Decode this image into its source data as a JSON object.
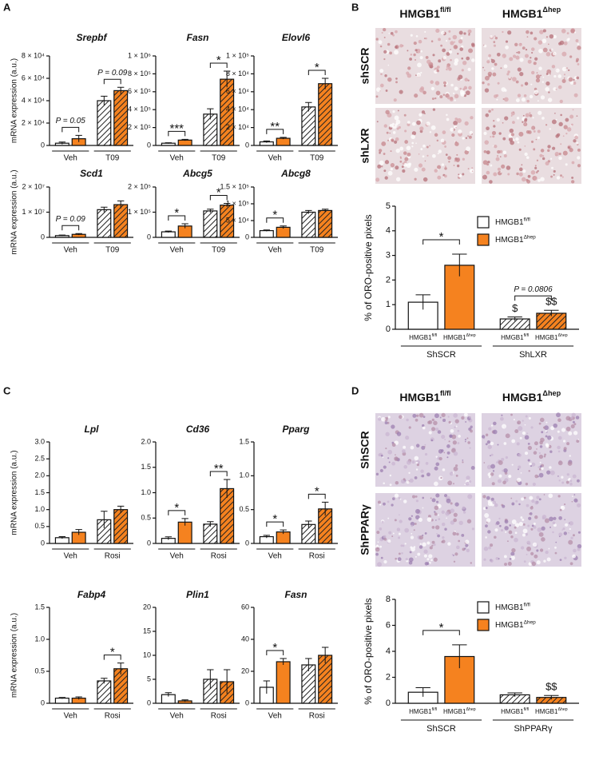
{
  "panel_labels": [
    "A",
    "B",
    "C",
    "D"
  ],
  "micrographs": [
    {
      "columns": [
        {
          "base": "HMGB1",
          "sup": "fl/fl"
        },
        {
          "base": "HMGB1",
          "sup": "Δhep"
        }
      ],
      "rows": [
        "shSCR",
        "shLXR"
      ]
    },
    {
      "columns": [
        {
          "base": "HMGB1",
          "sup": "fl/fl"
        },
        {
          "base": "HMGB1",
          "sup": "Δhep"
        }
      ],
      "rows": [
        "ShSCR",
        "ShPPARγ"
      ]
    }
  ],
  "chart_data": [
    {
      "type": "bar",
      "title": "Srepbf",
      "ylabel": "mRNA expression (a.u.)",
      "groups": [
        "Veh",
        "T09"
      ],
      "values": [
        2000,
        6000,
        40000,
        49000
      ],
      "errors": [
        1000,
        3000,
        4000,
        3000
      ],
      "colors": [
        "#ffffff",
        "#f5821f",
        "#ffffff",
        "#f5821f"
      ],
      "hatched": [
        false,
        false,
        true,
        true
      ],
      "ylim": [
        0,
        80000
      ],
      "yticks": [
        0,
        {
          "value": 20000,
          "label": "2 × 10⁴"
        },
        {
          "value": 40000,
          "label": "4 × 10⁴"
        },
        {
          "value": 60000,
          "label": "6 × 10⁴"
        },
        {
          "value": 80000,
          "label": "8 × 10⁴"
        }
      ],
      "annotations": [
        "P = 0.05",
        "P = 0.09"
      ]
    },
    {
      "type": "bar",
      "title": "Fasn",
      "groups": [
        "Veh",
        "T09"
      ],
      "values": [
        25000,
        60000,
        350000,
        740000
      ],
      "errors": [
        5000,
        8000,
        60000,
        90000
      ],
      "colors": [
        "#ffffff",
        "#f5821f",
        "#ffffff",
        "#f5821f"
      ],
      "hatched": [
        false,
        false,
        true,
        true
      ],
      "ylim": [
        0,
        1000000
      ],
      "yticks": [
        0,
        {
          "value": 200000,
          "label": "2 × 10⁵"
        },
        {
          "value": 400000,
          "label": "4 × 10⁵"
        },
        {
          "value": 600000,
          "label": "6 × 10⁵"
        },
        {
          "value": 800000,
          "label": "8 × 10⁵"
        },
        {
          "value": 1000000,
          "label": "1 × 10⁶"
        }
      ],
      "annotations": [
        "***",
        "*"
      ]
    },
    {
      "type": "bar",
      "title": "Elovl6",
      "groups": [
        "Veh",
        "T09"
      ],
      "values": [
        4000,
        8000,
        43000,
        69000
      ],
      "errors": [
        1000,
        1000,
        5000,
        6000
      ],
      "colors": [
        "#ffffff",
        "#f5821f",
        "#ffffff",
        "#f5821f"
      ],
      "hatched": [
        false,
        false,
        true,
        true
      ],
      "ylim": [
        0,
        100000
      ],
      "yticks": [
        0,
        {
          "value": 20000,
          "label": "2 × 10⁴"
        },
        {
          "value": 40000,
          "label": "4 × 10⁴"
        },
        {
          "value": 60000,
          "label": "6 × 10⁴"
        },
        {
          "value": 80000,
          "label": "8 × 10⁴"
        },
        {
          "value": 100000,
          "label": "1 × 10⁵"
        }
      ],
      "annotations": [
        "**",
        "*"
      ]
    },
    {
      "type": "bar",
      "title": "Scd1",
      "ylabel": "mRNA expression (a.u.)",
      "groups": [
        "Veh",
        "T09"
      ],
      "values": [
        700000,
        1200000,
        11000000,
        13000000
      ],
      "errors": [
        200000,
        300000,
        1000000,
        1500000
      ],
      "colors": [
        "#ffffff",
        "#f5821f",
        "#ffffff",
        "#f5821f"
      ],
      "hatched": [
        false,
        false,
        true,
        true
      ],
      "ylim": [
        0,
        20000000
      ],
      "yticks": [
        0,
        {
          "value": 10000000,
          "label": "1 × 10⁷"
        },
        {
          "value": 20000000,
          "label": "2 × 10⁷"
        }
      ],
      "annotations": [
        "P = 0.09",
        null
      ]
    },
    {
      "type": "bar",
      "title": "Abcg5",
      "groups": [
        "Veh",
        "T09"
      ],
      "values": [
        22000,
        45000,
        105000,
        128000
      ],
      "errors": [
        3000,
        9000,
        7000,
        7000
      ],
      "colors": [
        "#ffffff",
        "#f5821f",
        "#ffffff",
        "#f5821f"
      ],
      "hatched": [
        false,
        false,
        true,
        true
      ],
      "ylim": [
        0,
        200000
      ],
      "yticks": [
        0,
        {
          "value": 100000,
          "label": "1 × 10⁵"
        },
        {
          "value": 200000,
          "label": "2 × 10⁵"
        }
      ],
      "annotations": [
        "*",
        "*"
      ]
    },
    {
      "type": "bar",
      "title": "Abcg8",
      "groups": [
        "Veh",
        "T09"
      ],
      "values": [
        20000,
        30000,
        75000,
        80000
      ],
      "errors": [
        2000,
        4000,
        5000,
        4000
      ],
      "colors": [
        "#ffffff",
        "#f5821f",
        "#ffffff",
        "#f5821f"
      ],
      "hatched": [
        false,
        false,
        true,
        true
      ],
      "ylim": [
        0,
        150000
      ],
      "yticks": [
        0,
        {
          "value": 50000,
          "label": "5 × 10⁴"
        },
        {
          "value": 100000,
          "label": "1 × 10⁵"
        },
        {
          "value": 150000,
          "label": "1.5 × 10⁵"
        }
      ],
      "annotations": [
        "*",
        null
      ]
    },
    {
      "type": "bar",
      "ylabel": "% of ORO-positive pixels",
      "groups": [
        "ShSCR",
        "ShLXR"
      ],
      "categories": [
        {
          "base": "HMGB1",
          "sup": "fl/fl"
        },
        {
          "base": "HMGB1",
          "sup": "Δhep"
        },
        {
          "base": "HMGB1",
          "sup": "fl/fl"
        },
        {
          "base": "HMGB1",
          "sup": "Δhep"
        }
      ],
      "series": [
        {
          "name": {
            "base": "HMGB1",
            "sup": "fl/fl"
          },
          "color": "#ffffff"
        },
        {
          "name": {
            "base": "HMGB1",
            "sup": "Δhep"
          },
          "color": "#f5821f"
        }
      ],
      "values": [
        1.1,
        2.6,
        0.42,
        0.65
      ],
      "errors": [
        0.3,
        0.45,
        0.08,
        0.12
      ],
      "colors": [
        "#ffffff",
        "#f5821f",
        "#ffffff",
        "#f5821f"
      ],
      "hatched": [
        false,
        false,
        true,
        true
      ],
      "ylim": [
        0,
        5
      ],
      "yticks": [
        0,
        1,
        2,
        3,
        4,
        5
      ],
      "annotations": [
        "*",
        "P = 0.0806"
      ],
      "bar_labels": [
        null,
        null,
        "$",
        "$$"
      ]
    },
    {
      "type": "bar",
      "title": "Lpl",
      "ylabel": "mRNA expression (a.u.)",
      "groups": [
        "Veh",
        "Rosi"
      ],
      "values": [
        0.17,
        0.33,
        0.7,
        1.0
      ],
      "errors": [
        0.03,
        0.08,
        0.25,
        0.1
      ],
      "colors": [
        "#ffffff",
        "#f5821f",
        "#ffffff",
        "#f5821f"
      ],
      "hatched": [
        false,
        false,
        true,
        true
      ],
      "ylim": [
        0,
        3
      ],
      "yticks": [
        0,
        0.5,
        {
          "value": 1,
          "label": "1.0"
        },
        1.5,
        {
          "value": 2,
          "label": "2.0"
        },
        2.5,
        {
          "value": 3,
          "label": "3.0"
        }
      ],
      "annotations": [
        null,
        null
      ]
    },
    {
      "type": "bar",
      "title": "Cd36",
      "groups": [
        "Veh",
        "Rosi"
      ],
      "values": [
        0.1,
        0.42,
        0.38,
        1.08
      ],
      "errors": [
        0.03,
        0.07,
        0.05,
        0.18
      ],
      "colors": [
        "#ffffff",
        "#f5821f",
        "#ffffff",
        "#f5821f"
      ],
      "hatched": [
        false,
        false,
        true,
        true
      ],
      "ylim": [
        0,
        2
      ],
      "yticks": [
        0,
        0.5,
        {
          "value": 1,
          "label": "1.0"
        },
        1.5,
        {
          "value": 2,
          "label": "2.0"
        }
      ],
      "annotations": [
        "*",
        "**"
      ]
    },
    {
      "type": "bar",
      "title": "Pparg",
      "groups": [
        "Veh",
        "Rosi"
      ],
      "values": [
        0.1,
        0.17,
        0.28,
        0.51
      ],
      "errors": [
        0.02,
        0.03,
        0.05,
        0.1
      ],
      "colors": [
        "#ffffff",
        "#f5821f",
        "#ffffff",
        "#f5821f"
      ],
      "hatched": [
        false,
        false,
        true,
        true
      ],
      "ylim": [
        0,
        1.5
      ],
      "yticks": [
        0,
        0.5,
        {
          "value": 1,
          "label": "1.0"
        },
        1.5
      ],
      "annotations": [
        "*",
        "*"
      ]
    },
    {
      "type": "bar",
      "title": "Fabp4",
      "ylabel": "mRNA expression (a.u.)",
      "groups": [
        "Veh",
        "Rosi"
      ],
      "values": [
        0.08,
        0.08,
        0.35,
        0.54
      ],
      "errors": [
        0.01,
        0.02,
        0.04,
        0.09
      ],
      "colors": [
        "#ffffff",
        "#f5821f",
        "#ffffff",
        "#f5821f"
      ],
      "hatched": [
        false,
        false,
        true,
        true
      ],
      "ylim": [
        0,
        1.5
      ],
      "yticks": [
        0,
        0.5,
        {
          "value": 1,
          "label": "1.0"
        },
        1.5
      ],
      "annotations": [
        null,
        "*"
      ]
    },
    {
      "type": "bar",
      "title": "Plin1",
      "groups": [
        "Veh",
        "Rosi"
      ],
      "values": [
        1.8,
        0.5,
        5,
        4.5
      ],
      "errors": [
        0.4,
        0.2,
        2,
        2.5
      ],
      "colors": [
        "#ffffff",
        "#f5821f",
        "#ffffff",
        "#f5821f"
      ],
      "hatched": [
        false,
        false,
        true,
        true
      ],
      "ylim": [
        0,
        20
      ],
      "yticks": [
        0,
        5,
        10,
        15,
        20
      ],
      "annotations": [
        null,
        null
      ]
    },
    {
      "type": "bar",
      "title": "Fasn",
      "groups": [
        "Veh",
        "Rosi"
      ],
      "values": [
        10,
        26,
        24,
        30
      ],
      "errors": [
        4,
        2,
        4,
        5
      ],
      "colors": [
        "#ffffff",
        "#f5821f",
        "#ffffff",
        "#f5821f"
      ],
      "hatched": [
        false,
        false,
        true,
        true
      ],
      "ylim": [
        0,
        60
      ],
      "yticks": [
        0,
        20,
        40,
        60
      ],
      "annotations": [
        "*",
        null
      ]
    },
    {
      "type": "bar",
      "ylabel": "% of ORO-positive pixels",
      "groups": [
        "ShSCR",
        "ShPPARγ"
      ],
      "categories": [
        {
          "base": "HMGB1",
          "sup": "fl/fl"
        },
        {
          "base": "HMGB1",
          "sup": "Δhep"
        },
        {
          "base": "HMGB1",
          "sup": "fl/fl"
        },
        {
          "base": "HMGB1",
          "sup": "Δhep"
        }
      ],
      "series": [
        {
          "name": {
            "base": "HMGB1",
            "sup": "fl/fl"
          },
          "color": "#ffffff"
        },
        {
          "name": {
            "base": "HMGB1",
            "sup": "Δhep"
          },
          "color": "#f5821f"
        }
      ],
      "values": [
        0.85,
        3.6,
        0.65,
        0.45
      ],
      "errors": [
        0.35,
        0.9,
        0.15,
        0.15
      ],
      "colors": [
        "#ffffff",
        "#f5821f",
        "#ffffff",
        "#f5821f"
      ],
      "hatched": [
        false,
        false,
        true,
        true
      ],
      "ylim": [
        0,
        8
      ],
      "yticks": [
        0,
        2,
        4,
        6,
        8
      ],
      "annotations": [
        "*",
        null
      ],
      "bar_labels": [
        null,
        null,
        null,
        "$$"
      ]
    }
  ]
}
